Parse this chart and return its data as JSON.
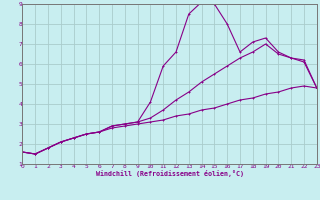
{
  "xlabel": "Windchill (Refroidissement éolien,°C)",
  "xlim": [
    0,
    23
  ],
  "ylim": [
    1,
    9
  ],
  "xticks": [
    0,
    1,
    2,
    3,
    4,
    5,
    6,
    7,
    8,
    9,
    10,
    11,
    12,
    13,
    14,
    15,
    16,
    17,
    18,
    19,
    20,
    21,
    22,
    23
  ],
  "yticks": [
    1,
    2,
    3,
    4,
    5,
    6,
    7,
    8,
    9
  ],
  "background_color": "#c8eef0",
  "grid_color": "#aacccc",
  "line_color": "#880088",
  "line1_x": [
    0,
    1,
    2,
    3,
    4,
    5,
    6,
    7,
    8,
    9,
    10,
    11,
    12,
    13,
    14,
    15,
    16,
    17,
    18,
    19,
    20,
    21,
    22,
    23
  ],
  "line1_y": [
    1.6,
    1.5,
    1.8,
    2.1,
    2.3,
    2.5,
    2.6,
    2.8,
    2.9,
    3.0,
    3.1,
    3.2,
    3.4,
    3.5,
    3.7,
    3.8,
    4.0,
    4.2,
    4.3,
    4.5,
    4.6,
    4.8,
    4.9,
    4.8
  ],
  "line2_x": [
    0,
    1,
    2,
    3,
    4,
    5,
    6,
    7,
    8,
    9,
    10,
    11,
    12,
    13,
    14,
    15,
    16,
    17,
    18,
    19,
    20,
    21,
    22,
    23
  ],
  "line2_y": [
    1.6,
    1.5,
    1.8,
    2.1,
    2.3,
    2.5,
    2.6,
    2.9,
    3.0,
    3.1,
    4.1,
    5.9,
    6.6,
    8.5,
    9.1,
    9.0,
    8.0,
    6.6,
    7.1,
    7.3,
    6.6,
    6.3,
    6.1,
    4.8
  ],
  "line3_x": [
    0,
    1,
    2,
    3,
    4,
    5,
    6,
    7,
    8,
    9,
    10,
    11,
    12,
    13,
    14,
    15,
    16,
    17,
    18,
    19,
    20,
    21,
    22,
    23
  ],
  "line3_y": [
    1.6,
    1.5,
    1.8,
    2.1,
    2.3,
    2.5,
    2.6,
    2.9,
    3.0,
    3.1,
    3.3,
    3.7,
    4.2,
    4.6,
    5.1,
    5.5,
    5.9,
    6.3,
    6.6,
    7.0,
    6.5,
    6.3,
    6.2,
    4.8
  ]
}
